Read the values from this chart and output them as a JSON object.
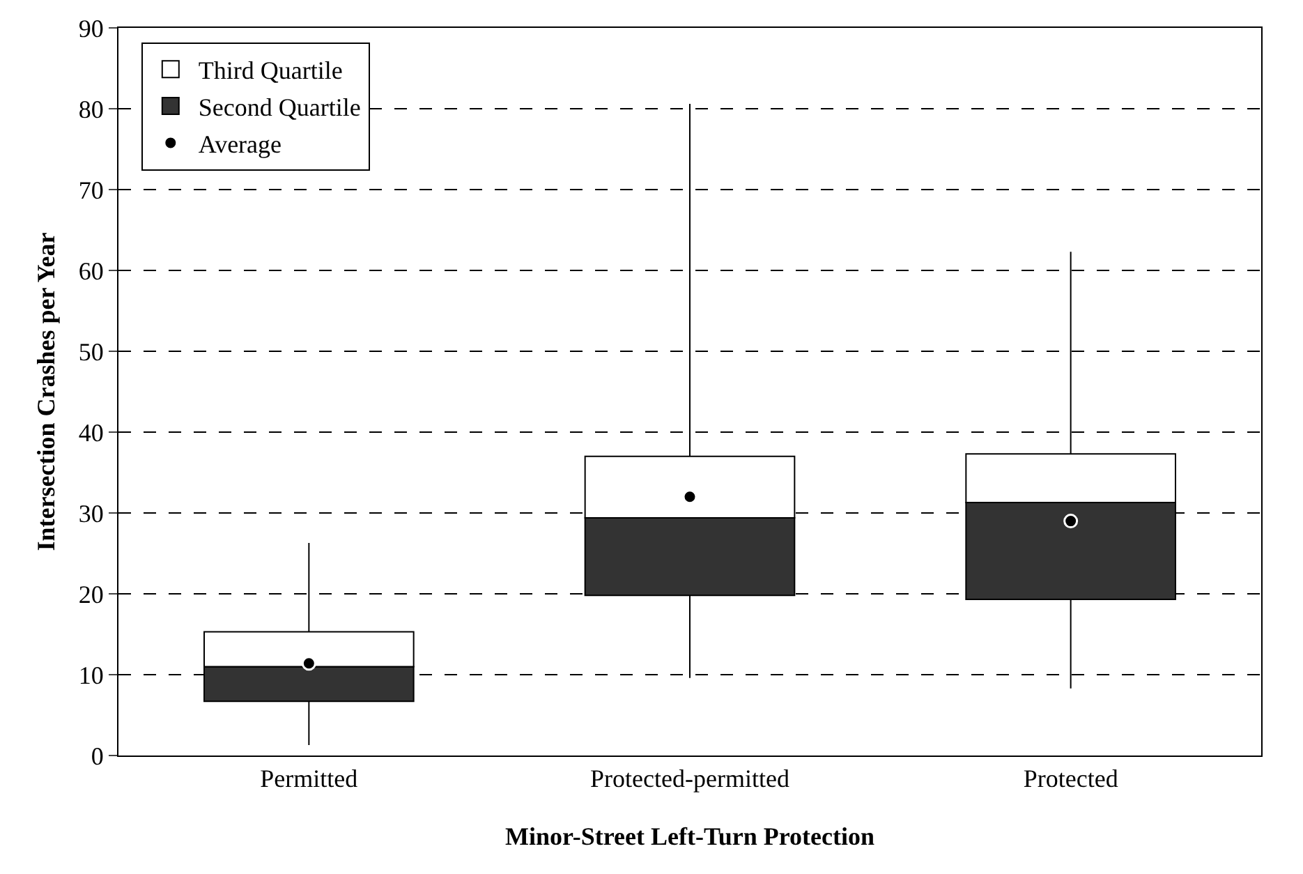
{
  "chart_data": {
    "type": "bar",
    "xlabel": "Minor-Street Left-Turn Protection",
    "ylabel": "Intersection Crashes per Year",
    "categories": [
      "Permitted",
      "Protected-permitted",
      "Protected"
    ],
    "series": [
      {
        "name": "Second Quartile",
        "color": "#333333",
        "base": [
          6.7,
          19.8,
          19.3
        ],
        "values": [
          4.3,
          9.6,
          12
        ]
      },
      {
        "name": "Third Quartile",
        "color": "#ffffff",
        "base": [
          11,
          29.4,
          31.3
        ],
        "values": [
          4.3,
          7.6,
          6
        ],
        "errors": [
          [
            1.3,
            26.3
          ],
          [
            9.6,
            80.6
          ],
          [
            8.3,
            62.3
          ]
        ]
      },
      {
        "name": "Average",
        "type": "scatter",
        "color": "#000000",
        "marker": "circle",
        "values": [
          11.4,
          32,
          29
        ]
      }
    ],
    "ylim": [
      0,
      90
    ],
    "yticks": [
      0,
      10,
      20,
      30,
      40,
      50,
      60,
      70,
      80,
      90
    ],
    "grid": "y",
    "legend": "top left"
  }
}
